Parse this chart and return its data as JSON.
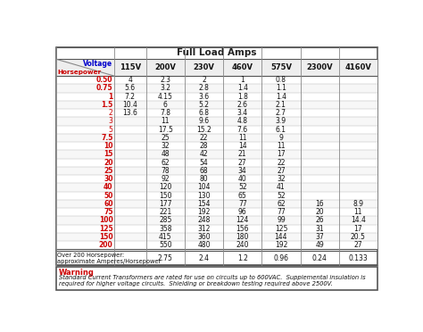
{
  "title": "Full Load Amps",
  "col_headers": [
    "Voltage",
    "115V",
    "200V",
    "230V",
    "460V",
    "575V",
    "2300V",
    "4160V"
  ],
  "hp_label": "Horsepower",
  "rows": [
    {
      "hp": "0.50",
      "v115": "4",
      "v200": "2.3",
      "v230": "2",
      "v460": "1",
      "v575": "0.8",
      "v2300": "",
      "v4160": ""
    },
    {
      "hp": "0.75",
      "v115": "5.6",
      "v200": "3.2",
      "v230": "2.8",
      "v460": "1.4",
      "v575": "1.1",
      "v2300": "",
      "v4160": ""
    },
    {
      "hp": "1",
      "v115": "7.2",
      "v200": "4.15",
      "v230": "3.6",
      "v460": "1.8",
      "v575": "1.4",
      "v2300": "",
      "v4160": ""
    },
    {
      "hp": "1.5",
      "v115": "10.4",
      "v200": "6",
      "v230": "5.2",
      "v460": "2.6",
      "v575": "2.1",
      "v2300": "",
      "v4160": ""
    },
    {
      "hp": "2",
      "v115": "13.6",
      "v200": "7.8",
      "v230": "6.8",
      "v460": "3.4",
      "v575": "2.7",
      "v2300": "",
      "v4160": ""
    },
    {
      "hp": "3",
      "v115": "",
      "v200": "11",
      "v230": "9.6",
      "v460": "4.8",
      "v575": "3.9",
      "v2300": "",
      "v4160": ""
    },
    {
      "hp": "5",
      "v115": "",
      "v200": "17.5",
      "v230": "15.2",
      "v460": "7.6",
      "v575": "6.1",
      "v2300": "",
      "v4160": ""
    },
    {
      "hp": "7.5",
      "v115": "",
      "v200": "25",
      "v230": "22",
      "v460": "11",
      "v575": "9",
      "v2300": "",
      "v4160": ""
    },
    {
      "hp": "10",
      "v115": "",
      "v200": "32",
      "v230": "28",
      "v460": "14",
      "v575": "11",
      "v2300": "",
      "v4160": ""
    },
    {
      "hp": "15",
      "v115": "",
      "v200": "48",
      "v230": "42",
      "v460": "21",
      "v575": "17",
      "v2300": "",
      "v4160": ""
    },
    {
      "hp": "20",
      "v115": "",
      "v200": "62",
      "v230": "54",
      "v460": "27",
      "v575": "22",
      "v2300": "",
      "v4160": ""
    },
    {
      "hp": "25",
      "v115": "",
      "v200": "78",
      "v230": "68",
      "v460": "34",
      "v575": "27",
      "v2300": "",
      "v4160": ""
    },
    {
      "hp": "30",
      "v115": "",
      "v200": "92",
      "v230": "80",
      "v460": "40",
      "v575": "32",
      "v2300": "",
      "v4160": ""
    },
    {
      "hp": "40",
      "v115": "",
      "v200": "120",
      "v230": "104",
      "v460": "52",
      "v575": "41",
      "v2300": "",
      "v4160": ""
    },
    {
      "hp": "50",
      "v115": "",
      "v200": "150",
      "v230": "130",
      "v460": "65",
      "v575": "52",
      "v2300": "",
      "v4160": ""
    },
    {
      "hp": "60",
      "v115": "",
      "v200": "177",
      "v230": "154",
      "v460": "77",
      "v575": "62",
      "v2300": "16",
      "v4160": "8.9"
    },
    {
      "hp": "75",
      "v115": "",
      "v200": "221",
      "v230": "192",
      "v460": "96",
      "v575": "77",
      "v2300": "20",
      "v4160": "11"
    },
    {
      "hp": "100",
      "v115": "",
      "v200": "285",
      "v230": "248",
      "v460": "124",
      "v575": "99",
      "v2300": "26",
      "v4160": "14.4"
    },
    {
      "hp": "125",
      "v115": "",
      "v200": "358",
      "v230": "312",
      "v460": "156",
      "v575": "125",
      "v2300": "31",
      "v4160": "17"
    },
    {
      "hp": "150",
      "v115": "",
      "v200": "415",
      "v230": "360",
      "v460": "180",
      "v575": "144",
      "v2300": "37",
      "v4160": "20.5"
    },
    {
      "hp": "200",
      "v115": "",
      "v200": "550",
      "v230": "480",
      "v460": "240",
      "v575": "192",
      "v2300": "49",
      "v4160": "27"
    }
  ],
  "footer_label": "Over 200 Horsepower:\napproximate Amperes/Horsepower",
  "footer_values": [
    "",
    "",
    "2.75",
    "2.4",
    "1.2",
    "0.96",
    "0.24",
    "0.133"
  ],
  "warning_title": "Warning",
  "warning_text": "Standard Current Transformers are rated for use on circuits up to 600VAC.  Supplemental insulation is\nrequired for higher voltage circuits.  Shielding or breakdown testing required above 2500V.",
  "hp_red": "#cc0000",
  "voltage_blue": "#0000cc",
  "title_color": "#222222",
  "bg_color": "#ffffff",
  "bold_hp": [
    "0.50",
    "0.75",
    "1",
    "1.5",
    "7.5",
    "10",
    "15",
    "20",
    "25",
    "30",
    "40",
    "50",
    "60",
    "75",
    "100",
    "125",
    "150",
    "200"
  ]
}
